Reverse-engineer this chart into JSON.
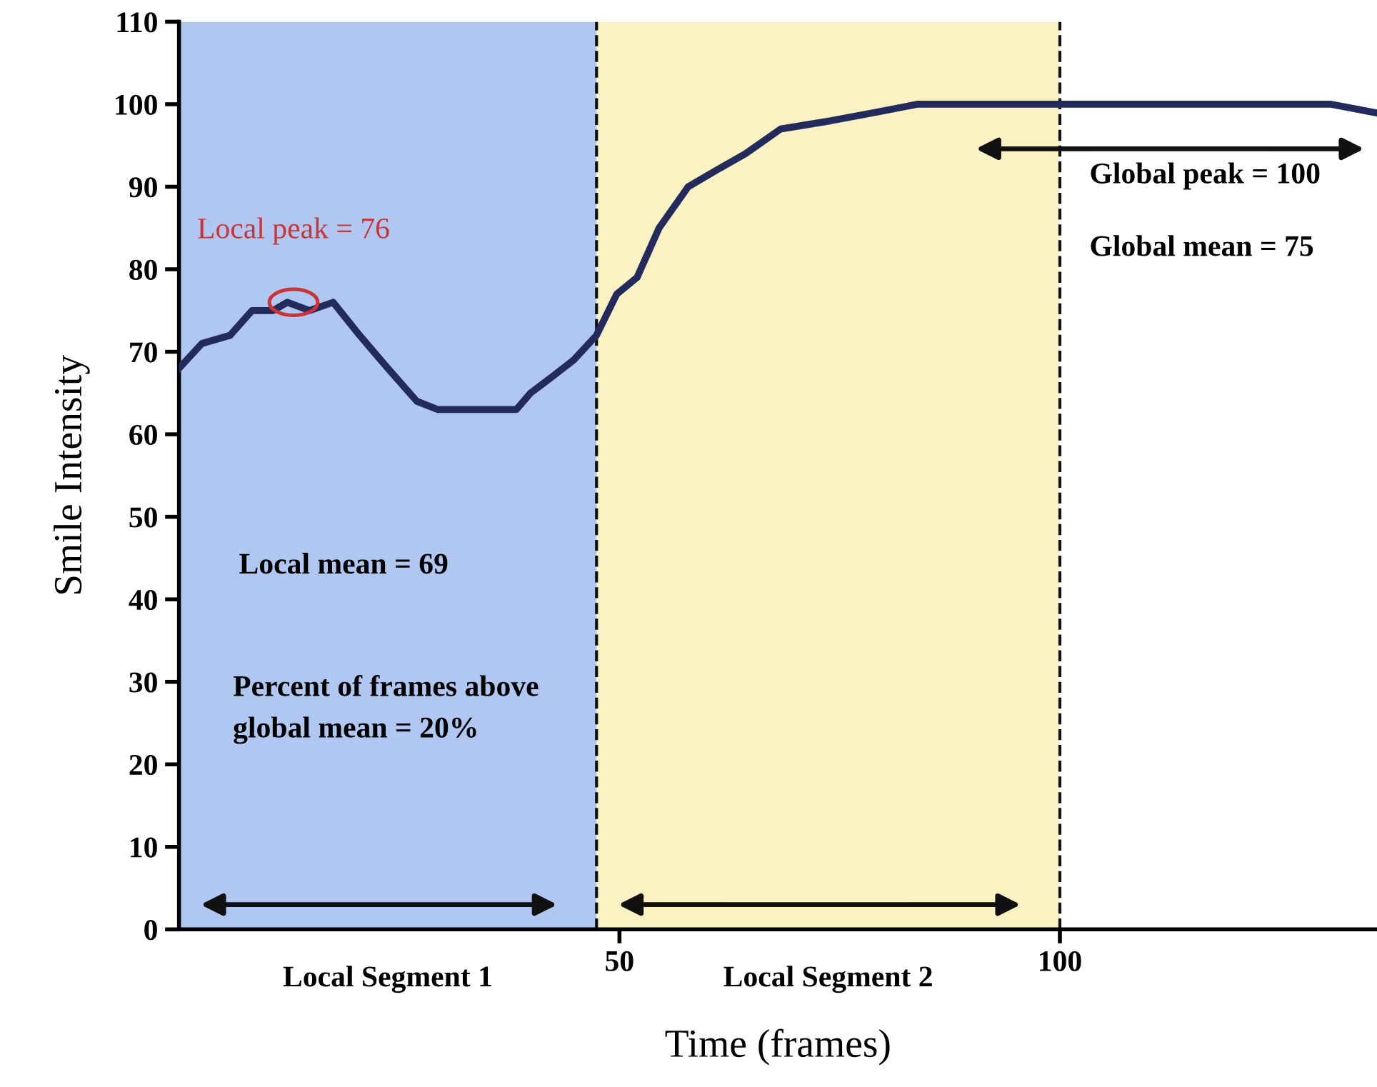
{
  "chart_data": {
    "type": "line",
    "xlabel": "Time (frames)",
    "ylabel": "Smile Intensity",
    "x": [
      0,
      2.6,
      5.8,
      8.3,
      10.7,
      12.3,
      14.8,
      17.5,
      20.5,
      23.7,
      27,
      29.4,
      31.8,
      35,
      38.3,
      39.9,
      42.4,
      44.8,
      47.4,
      49.7,
      52,
      54.5,
      57.8,
      61,
      64.3,
      68.3,
      74,
      79,
      83.8,
      93.5,
      103,
      118,
      130.8,
      135.7
    ],
    "series": [
      {
        "color": "#232a5c",
        "values": [
          68,
          71,
          72,
          75,
          75,
          76,
          75,
          76,
          72,
          68,
          64,
          63,
          63,
          63,
          63,
          65,
          67,
          69,
          72,
          77,
          79,
          85,
          90,
          92,
          94,
          97,
          98,
          99,
          100,
          100,
          100,
          100,
          100,
          99
        ]
      }
    ],
    "xlim": [
      0,
      136
    ],
    "ylim": [
      0,
      110
    ],
    "xticks": [
      50,
      100
    ],
    "yticks": [
      0,
      10,
      20,
      30,
      40,
      50,
      60,
      70,
      80,
      90,
      100,
      110
    ],
    "bands": [
      {
        "axis": "x",
        "from": 0,
        "to": 47.4,
        "label": "Local Segment 1",
        "color": "#4f86e0"
      },
      {
        "axis": "x",
        "from": 47.4,
        "to": 100,
        "label": "Local Segment 2",
        "color": "#f7e27a"
      }
    ],
    "ref_lines": [
      {
        "axis": "x",
        "value": 47.4,
        "label": null,
        "line_style": "dashed"
      },
      {
        "axis": "x",
        "value": 100,
        "label": null,
        "line_style": "dashed"
      }
    ],
    "annotations": [
      {
        "text": "Local peak = 76",
        "x": 13,
        "y": 76
      },
      "Local mean = 69",
      "Percent of frames above global mean = 20%",
      "Global peak = 100",
      "Global mean = 75"
    ],
    "grid": false,
    "legend": false,
    "marker": "none",
    "line_style": "solid"
  }
}
